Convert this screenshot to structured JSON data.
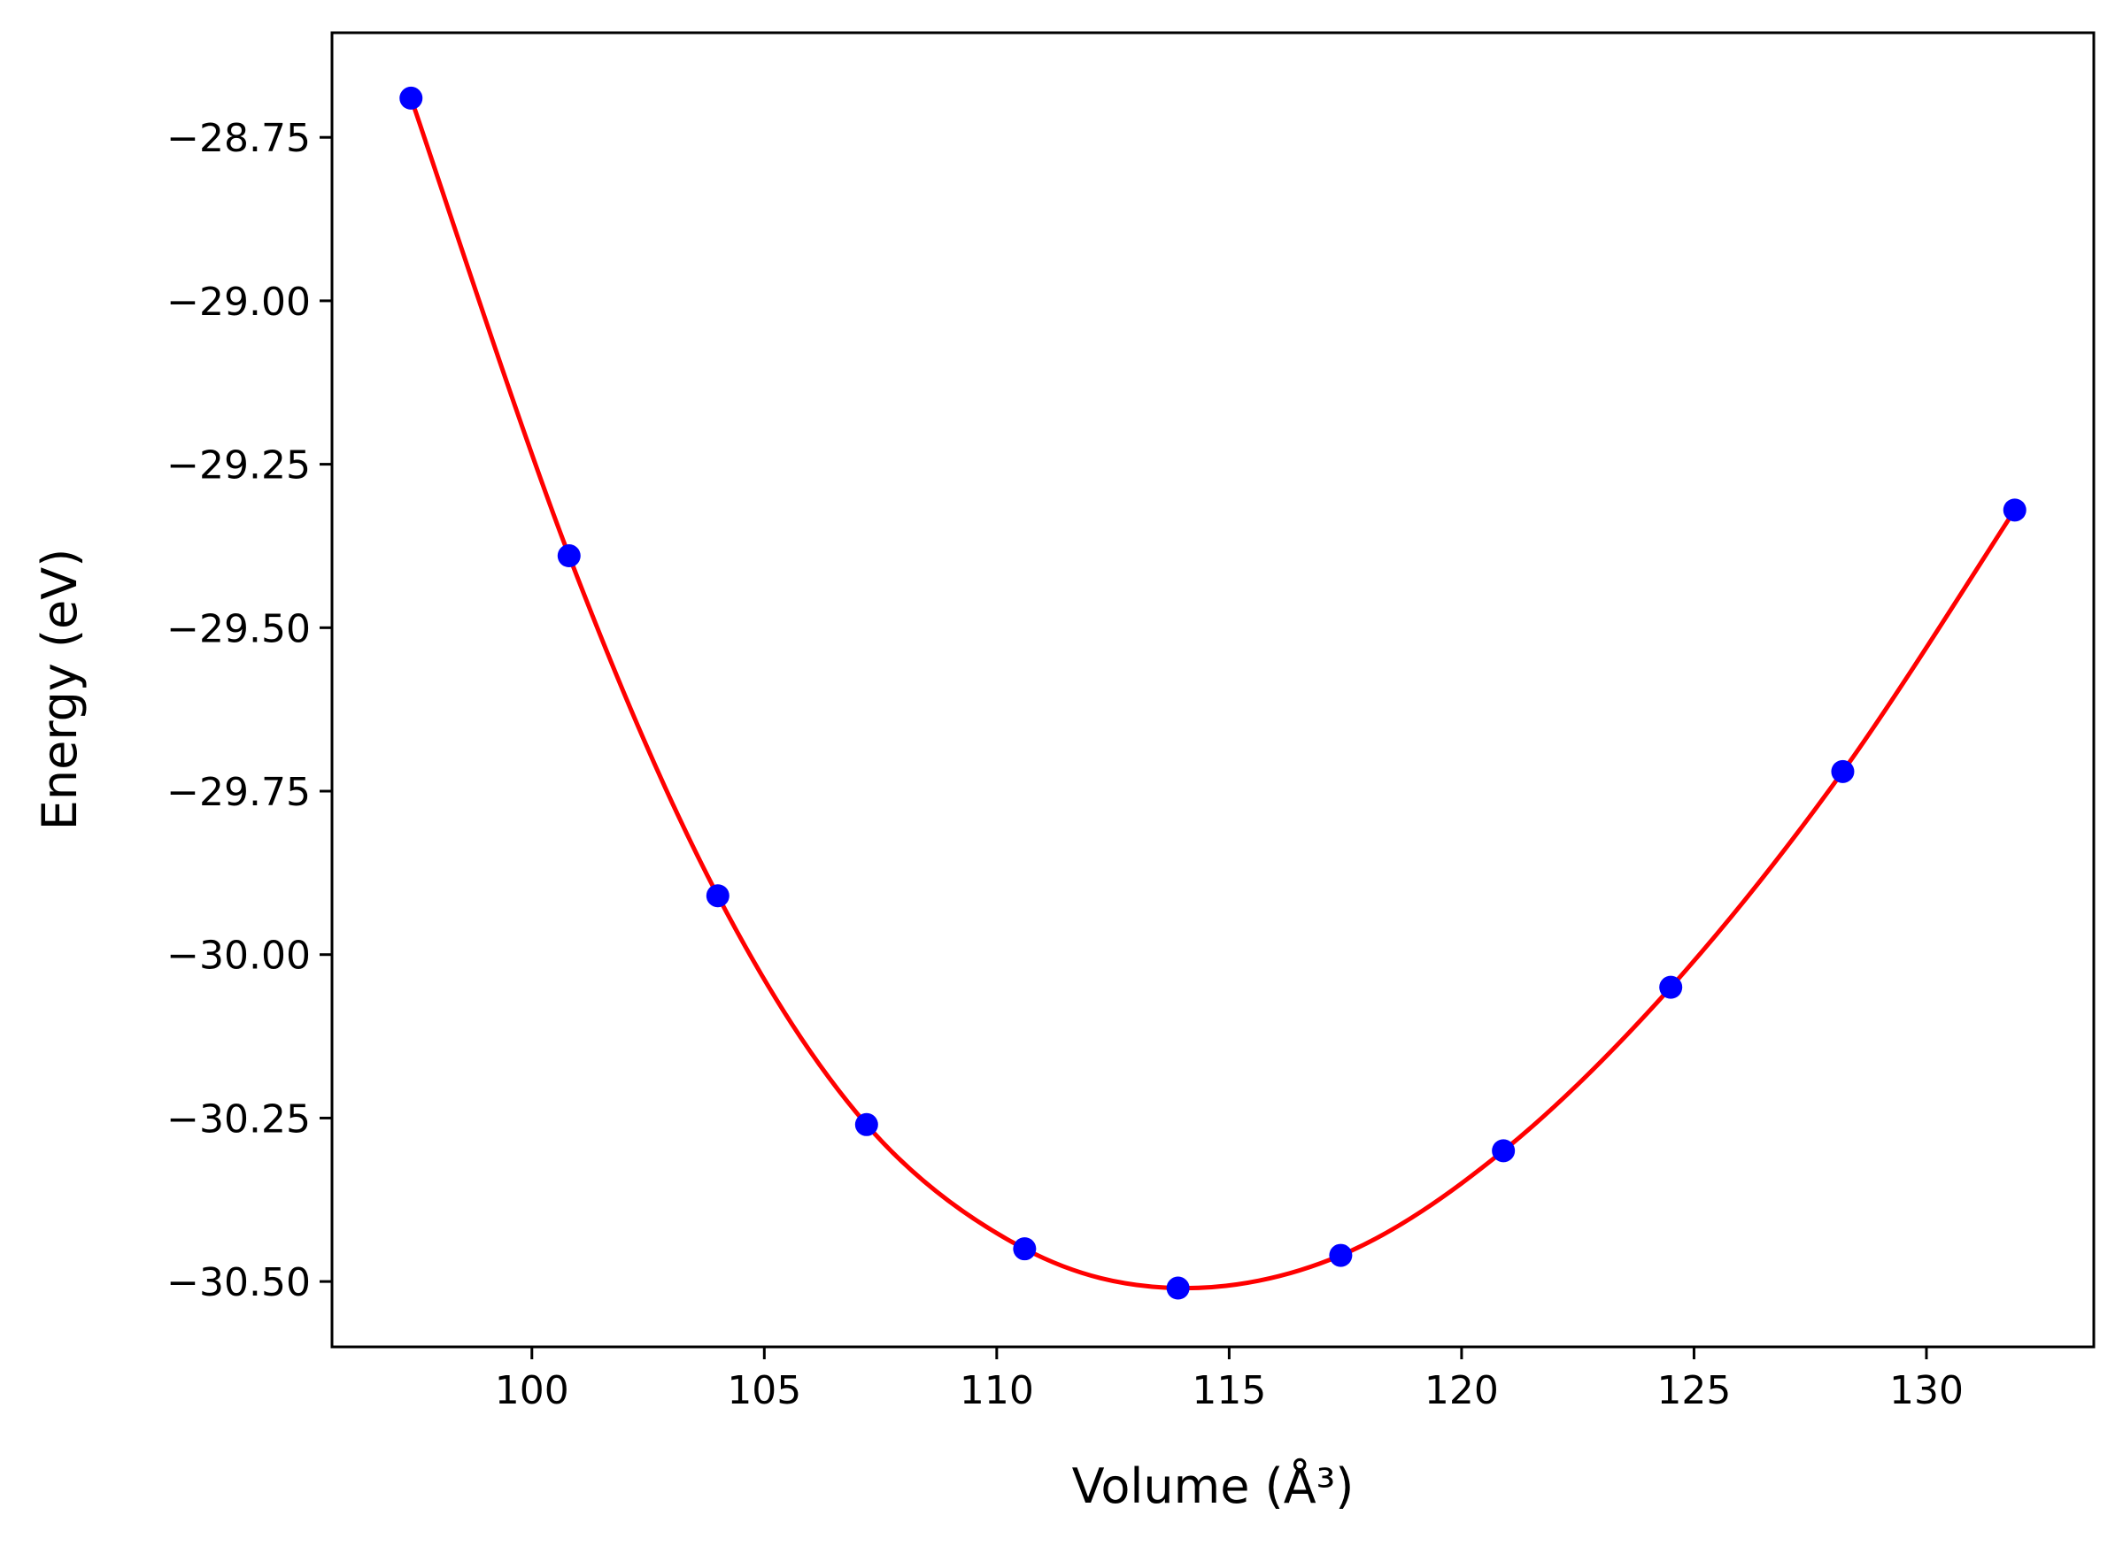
{
  "chart_data": {
    "type": "scatter",
    "title": "",
    "xlabel": "Volume (Å³)",
    "ylabel": "Energy (eV)",
    "xlim": [
      95.7,
      133.6
    ],
    "ylim": [
      -30.6,
      -28.59
    ],
    "xticks": [
      100,
      105,
      110,
      115,
      120,
      125,
      130
    ],
    "xtick_labels": [
      "100",
      "105",
      "110",
      "115",
      "120",
      "125",
      "130"
    ],
    "yticks": [
      -28.75,
      -29.0,
      -29.25,
      -29.5,
      -29.75,
      -30.0,
      -30.25,
      -30.5
    ],
    "ytick_labels": [
      "−28.75",
      "−29.00",
      "−29.25",
      "−29.50",
      "−29.75",
      "−30.00",
      "−30.25",
      "−30.50"
    ],
    "grid": false,
    "series": [
      {
        "kind": "points",
        "color": "#0000ff",
        "x": [
          97.4,
          100.8,
          104.0,
          107.2,
          110.6,
          113.9,
          117.4,
          120.9,
          124.5,
          128.2,
          131.9
        ],
        "y": [
          -28.69,
          -29.39,
          -29.91,
          -30.26,
          -30.45,
          -30.51,
          -30.46,
          -30.3,
          -30.05,
          -29.72,
          -29.32
        ]
      },
      {
        "kind": "fit-curve",
        "color": "#ff0000",
        "x": [
          97.4,
          100.8,
          104.0,
          107.2,
          110.6,
          113.9,
          117.4,
          120.9,
          124.5,
          128.2,
          131.9
        ],
        "y": [
          -28.69,
          -29.39,
          -29.91,
          -30.26,
          -30.45,
          -30.51,
          -30.46,
          -30.3,
          -30.05,
          -29.72,
          -29.32
        ]
      }
    ]
  }
}
